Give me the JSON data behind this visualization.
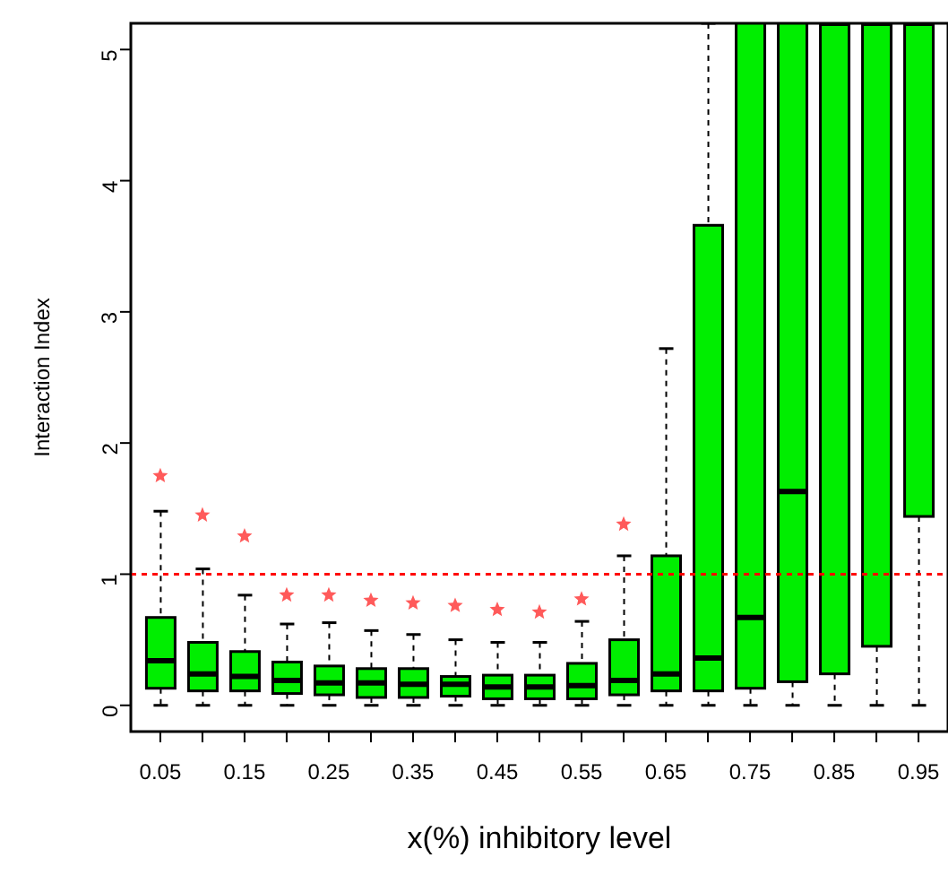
{
  "chart_data": {
    "type": "box",
    "xlabel": "x(%) inhibitory level",
    "ylabel": "Interaction Index",
    "categories": [
      "0.05",
      null,
      "0.15",
      null,
      "0.25",
      null,
      "0.35",
      null,
      "0.45",
      null,
      "0.55",
      null,
      "0.65",
      null,
      "0.75",
      null,
      "0.85",
      null,
      "0.95"
    ],
    "color": "#00ee00",
    "boxes": [
      {
        "low": 0,
        "q1": 0.13,
        "median": 0.34,
        "q3": 0.67,
        "high": 1.48
      },
      {
        "low": 0,
        "q1": 0.11,
        "median": 0.24,
        "q3": 0.48,
        "high": 1.04
      },
      {
        "low": 0,
        "q1": 0.11,
        "median": 0.22,
        "q3": 0.41,
        "high": 0.84
      },
      {
        "low": 0,
        "q1": 0.09,
        "median": 0.19,
        "q3": 0.33,
        "high": 0.62
      },
      {
        "low": 0,
        "q1": 0.08,
        "median": 0.17,
        "q3": 0.3,
        "high": 0.63
      },
      {
        "low": 0,
        "q1": 0.06,
        "median": 0.17,
        "q3": 0.28,
        "high": 0.57
      },
      {
        "low": 0,
        "q1": 0.06,
        "median": 0.16,
        "q3": 0.28,
        "high": 0.54
      },
      {
        "low": 0,
        "q1": 0.07,
        "median": 0.16,
        "q3": 0.22,
        "high": 0.5
      },
      {
        "low": 0,
        "q1": 0.05,
        "median": 0.14,
        "q3": 0.23,
        "high": 0.48
      },
      {
        "low": 0,
        "q1": 0.05,
        "median": 0.14,
        "q3": 0.23,
        "high": 0.48
      },
      {
        "low": 0,
        "q1": 0.05,
        "median": 0.15,
        "q3": 0.32,
        "high": 0.64
      },
      {
        "low": 0,
        "q1": 0.08,
        "median": 0.19,
        "q3": 0.5,
        "high": 1.14
      },
      {
        "low": 0,
        "q1": 0.11,
        "median": 0.24,
        "q3": 1.14,
        "high": 2.72
      },
      {
        "low": 0,
        "q1": 0.11,
        "median": 0.36,
        "q3": 3.66,
        "high": 5.2
      },
      {
        "low": 0,
        "q1": 0.13,
        "median": 0.67,
        "q3": 5.2,
        "high": 5.2
      },
      {
        "low": 0,
        "q1": 0.18,
        "median": 1.63,
        "q3": 5.2,
        "high": 5.2
      },
      {
        "low": 0,
        "q1": 0.24,
        "median": 5.2,
        "q3": 5.2,
        "high": 5.2
      },
      {
        "low": 0,
        "q1": 0.45,
        "median": 5.2,
        "q3": 5.2,
        "high": 5.2
      },
      {
        "low": 0,
        "q1": 1.44,
        "median": 5.2,
        "q3": 5.2,
        "high": 5.2
      }
    ],
    "series": [
      {
        "type": "scatter",
        "color": "#ff5a5a",
        "values": [
          1.75,
          1.45,
          1.29,
          0.84,
          0.84,
          0.8,
          0.78,
          0.76,
          0.73,
          0.71,
          0.81,
          1.38,
          null,
          null,
          null,
          null,
          null,
          null,
          null
        ]
      }
    ],
    "marker": "star",
    "ref_lines": [
      {
        "axis": "y",
        "value": 1,
        "color": "#ff0000",
        "line_style": "dotted"
      }
    ],
    "ylim": [
      -0.2,
      5.2
    ],
    "yticks": [
      0,
      1,
      2,
      3,
      4,
      5
    ]
  }
}
